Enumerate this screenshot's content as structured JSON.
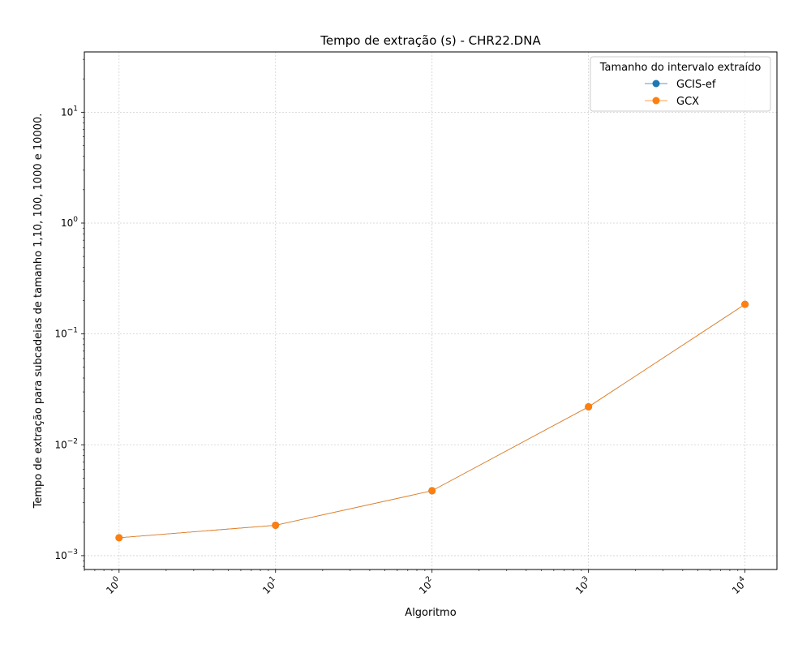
{
  "chart_data": {
    "type": "line",
    "title": "Tempo de extração (s) - CHR22.DNA",
    "xlabel": "Algoritmo",
    "ylabel": "Tempo de extração para subcadeias de tamanho 1,10, 100, 1000 e 10000.",
    "x_scale": "log",
    "y_scale": "log",
    "xlim": [
      0.6,
      16000
    ],
    "ylim": [
      0.00075,
      35
    ],
    "x_ticks": [
      {
        "value": 1,
        "base": "10",
        "exp": "0"
      },
      {
        "value": 10,
        "base": "10",
        "exp": "1"
      },
      {
        "value": 100,
        "base": "10",
        "exp": "2"
      },
      {
        "value": 1000,
        "base": "10",
        "exp": "3"
      },
      {
        "value": 10000,
        "base": "10",
        "exp": "4"
      }
    ],
    "y_ticks": [
      {
        "value": 0.001,
        "base": "10",
        "exp": "−3"
      },
      {
        "value": 0.01,
        "base": "10",
        "exp": "−2"
      },
      {
        "value": 0.1,
        "base": "10",
        "exp": "−1"
      },
      {
        "value": 1,
        "base": "10",
        "exp": "0"
      },
      {
        "value": 10,
        "base": "10",
        "exp": "1"
      }
    ],
    "grid": true,
    "legend": {
      "title": "Tamanho do intervalo extraído",
      "placement": "top-right"
    },
    "x": [
      1,
      10,
      100,
      1000,
      10000
    ],
    "series": [
      {
        "name": "GCIS-ef",
        "color": "#1f77b4",
        "values": [
          0.00145,
          0.00188,
          0.00385,
          0.022,
          0.185
        ]
      },
      {
        "name": "GCX",
        "color": "#ff7f0e",
        "values": [
          0.00145,
          0.00188,
          0.00385,
          0.022,
          0.185
        ]
      }
    ]
  }
}
